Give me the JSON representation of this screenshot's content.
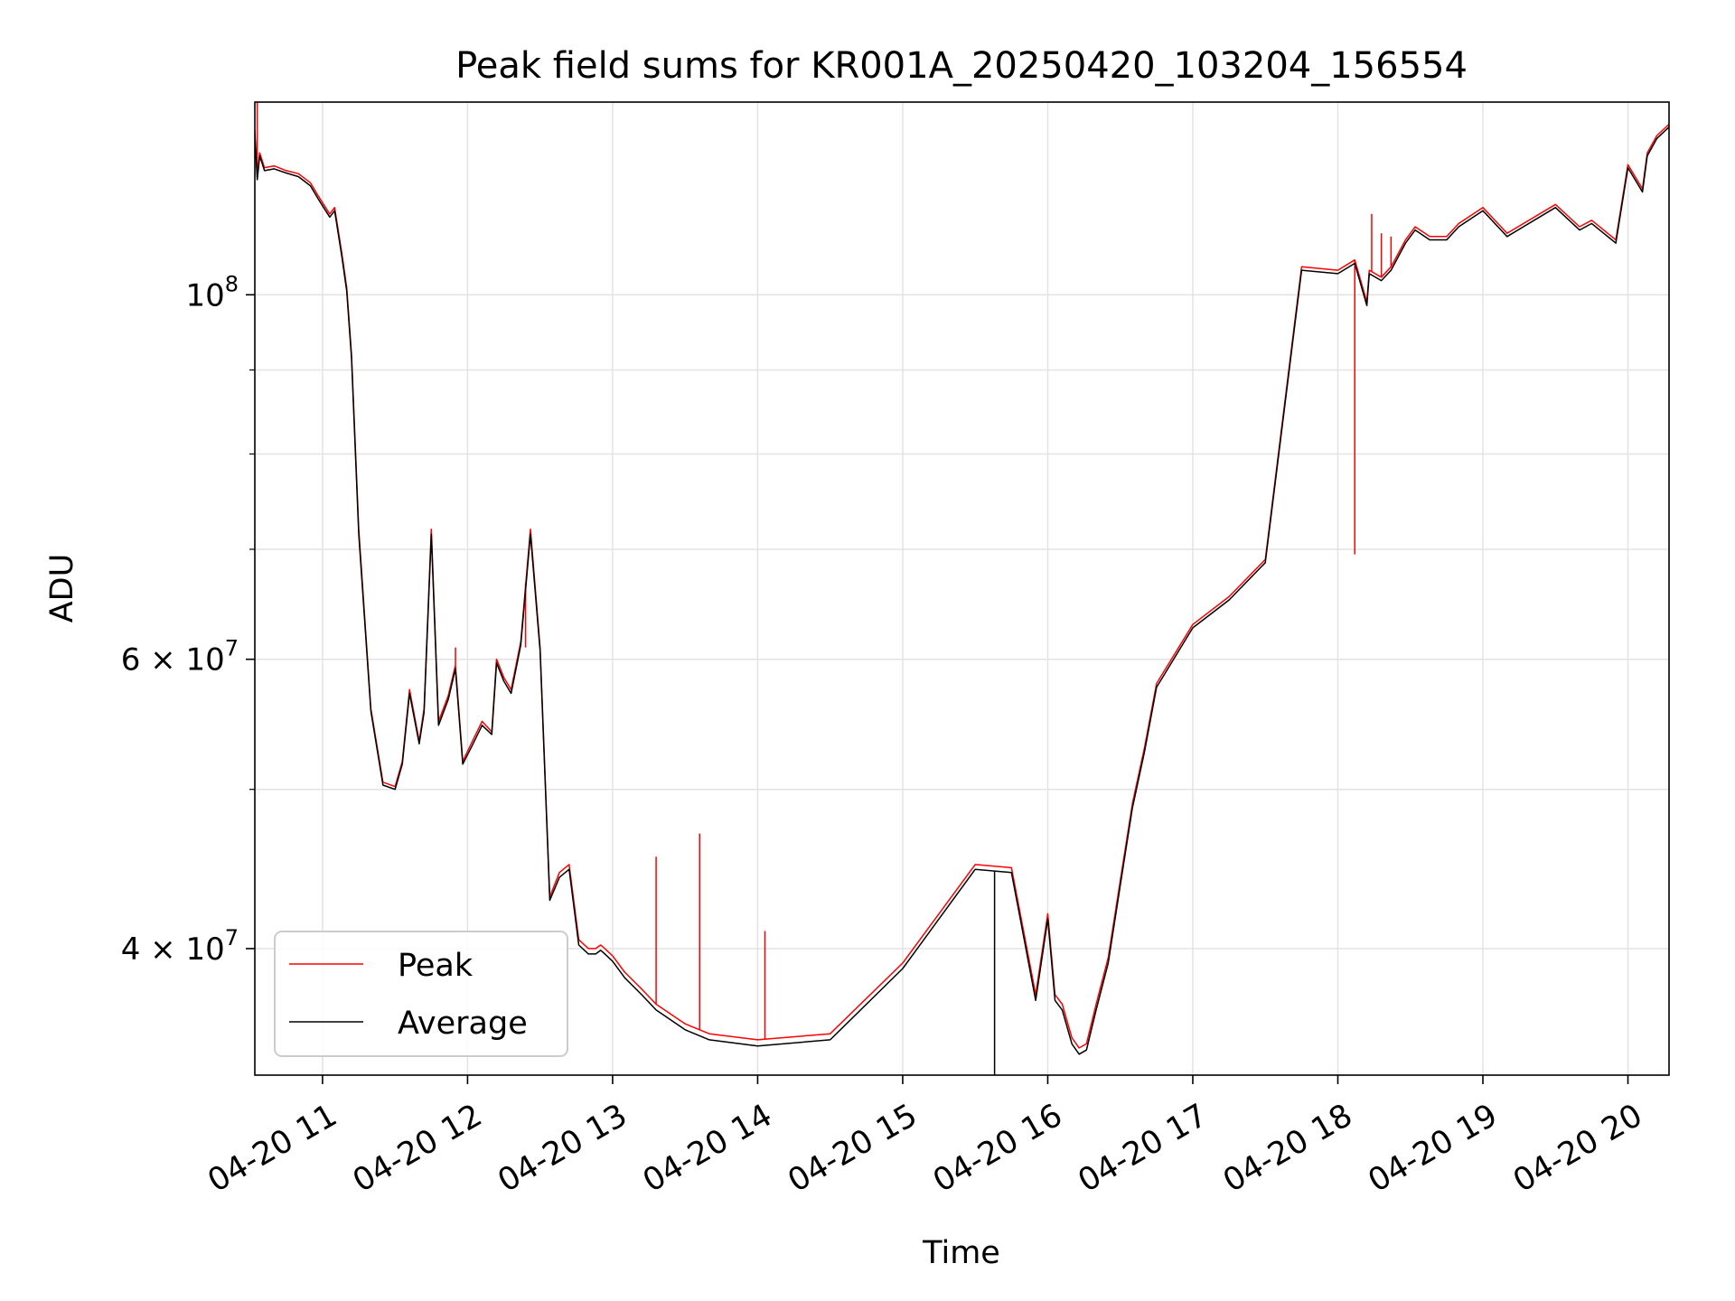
{
  "chart_data": {
    "type": "line",
    "title": "Peak field sums for KR001A_20250420_103204_156554",
    "xlabel": "Time",
    "ylabel": "ADU",
    "yscale": "log",
    "grid": true,
    "legend_position": "lower-left",
    "xlim": [
      "04-20 10:32",
      "04-20 20:17"
    ],
    "ylim": [
      33500000,
      131000000
    ],
    "x_ticks": [
      "04-20 11",
      "04-20 12",
      "04-20 13",
      "04-20 14",
      "04-20 15",
      "04-20 16",
      "04-20 17",
      "04-20 18",
      "04-20 19",
      "04-20 20"
    ],
    "y_ticks": [
      {
        "value": 100000000,
        "mantissa": "10",
        "exp": "8"
      },
      {
        "value": 60000000,
        "mantissa": "6 × 10",
        "exp": "7"
      },
      {
        "value": 40000000,
        "mantissa": "4 × 10",
        "exp": "7"
      }
    ],
    "y_minor_ticks": [
      50000000,
      70000000,
      80000000,
      90000000
    ],
    "series": [
      {
        "name": "Peak",
        "color": "#ff0000",
        "x": [
          "04-20 10:32",
          "04-20 10:33",
          "04-20 10:34",
          "04-20 10:36",
          "04-20 10:40",
          "04-20 10:45",
          "04-20 10:50",
          "04-20 10:55",
          "04-20 10:58",
          "04-20 11:03",
          "04-20 11:05",
          "04-20 11:08",
          "04-20 11:10",
          "04-20 11:12",
          "04-20 11:15",
          "04-20 11:20",
          "04-20 11:25",
          "04-20 11:30",
          "04-20 11:33",
          "04-20 11:36",
          "04-20 11:40",
          "04-20 11:42",
          "04-20 11:45",
          "04-20 11:48",
          "04-20 11:52",
          "04-20 11:55",
          "04-20 11:58",
          "04-20 12:02",
          "04-20 12:06",
          "04-20 12:10",
          "04-20 12:12",
          "04-20 12:15",
          "04-20 12:18",
          "04-20 12:22",
          "04-20 12:26",
          "04-20 12:30",
          "04-20 12:34",
          "04-20 12:38",
          "04-20 12:42",
          "04-20 12:46",
          "04-20 12:50",
          "04-20 12:53",
          "04-20 12:55",
          "04-20 12:56",
          "04-20 13:00",
          "04-20 13:05",
          "04-20 13:12",
          "04-20 13:18",
          "04-20 13:30",
          "04-20 13:40",
          "04-20 14:00",
          "04-20 14:30",
          "04-20 15:00",
          "04-20 15:30",
          "04-20 15:45",
          "04-20 15:50",
          "04-20 15:55",
          "04-20 16:00",
          "04-20 16:03",
          "04-20 16:06",
          "04-20 16:10",
          "04-20 16:13",
          "04-20 16:16",
          "04-20 16:20",
          "04-20 16:25",
          "04-20 16:30",
          "04-20 16:35",
          "04-20 16:40",
          "04-20 16:45",
          "04-20 17:00",
          "04-20 17:15",
          "04-20 17:30",
          "04-20 17:45",
          "04-20 18:00",
          "04-20 18:07",
          "04-20 18:12",
          "04-20 18:13",
          "04-20 18:18",
          "04-20 18:22",
          "04-20 18:28",
          "04-20 18:32",
          "04-20 18:38",
          "04-20 18:45",
          "04-20 18:50",
          "04-20 19:00",
          "04-20 19:10",
          "04-20 19:30",
          "04-20 19:40",
          "04-20 19:45",
          "04-20 19:55",
          "04-20 20:00",
          "04-20 20:06",
          "04-20 20:08",
          "04-20 20:12",
          "04-20 20:17"
        ],
        "values": [
          126000000,
          118000000,
          122000000,
          119500000,
          119800000,
          119000000,
          118500000,
          117000000,
          115000000,
          112000000,
          113000000,
          106000000,
          101000000,
          92000000,
          72000000,
          56000000,
          50500000,
          50200000,
          52000000,
          57500000,
          53500000,
          56000000,
          72000000,
          55000000,
          57000000,
          59500000,
          52000000,
          53500000,
          55000000,
          54200000,
          60000000,
          58500000,
          57500000,
          61500000,
          72000000,
          61000000,
          43000000,
          44500000,
          45000000,
          40500000,
          40000000,
          40000000,
          40200000,
          40100000,
          39600000,
          38700000,
          37800000,
          37000000,
          36000000,
          35500000,
          35200000,
          35500000,
          39200000,
          45000000,
          44800000,
          41000000,
          37500000,
          42000000,
          37500000,
          37000000,
          35300000,
          34800000,
          35000000,
          37000000,
          39500000,
          44000000,
          49000000,
          53000000,
          58000000,
          63000000,
          65500000,
          69000000,
          104000000,
          103500000,
          105000000,
          99000000,
          103500000,
          102500000,
          104000000,
          108000000,
          110000000,
          108500000,
          108500000,
          110500000,
          113000000,
          109000000,
          113500000,
          110000000,
          111000000,
          108000000,
          120000000,
          116000000,
          122000000,
          125000000,
          127000000
        ],
        "spikes": [
          {
            "x": "04-20 10:33",
            "value": 131000000
          },
          {
            "x": "04-20 11:55",
            "value": 61000000
          },
          {
            "x": "04-20 12:24",
            "value": 61000000
          },
          {
            "x": "04-20 13:18",
            "value": 45500000
          },
          {
            "x": "04-20 13:36",
            "value": 47000000
          },
          {
            "x": "04-20 14:03",
            "value": 41000000
          },
          {
            "x": "04-20 18:07",
            "value": 69500000
          },
          {
            "x": "04-20 18:14",
            "value": 112000000
          },
          {
            "x": "04-20 18:18",
            "value": 109000000
          },
          {
            "x": "04-20 18:22",
            "value": 108500000
          }
        ]
      },
      {
        "name": "Average",
        "color": "#000000",
        "x": [
          "04-20 10:32",
          "04-20 10:33",
          "04-20 10:34",
          "04-20 10:36",
          "04-20 10:40",
          "04-20 10:45",
          "04-20 10:50",
          "04-20 10:55",
          "04-20 10:58",
          "04-20 11:03",
          "04-20 11:05",
          "04-20 11:08",
          "04-20 11:10",
          "04-20 11:12",
          "04-20 11:15",
          "04-20 11:20",
          "04-20 11:25",
          "04-20 11:30",
          "04-20 11:33",
          "04-20 11:36",
          "04-20 11:40",
          "04-20 11:42",
          "04-20 11:45",
          "04-20 11:48",
          "04-20 11:52",
          "04-20 11:55",
          "04-20 11:58",
          "04-20 12:02",
          "04-20 12:06",
          "04-20 12:10",
          "04-20 12:12",
          "04-20 12:15",
          "04-20 12:18",
          "04-20 12:22",
          "04-20 12:26",
          "04-20 12:30",
          "04-20 12:34",
          "04-20 12:38",
          "04-20 12:42",
          "04-20 12:46",
          "04-20 12:50",
          "04-20 12:53",
          "04-20 12:55",
          "04-20 12:56",
          "04-20 13:00",
          "04-20 13:05",
          "04-20 13:12",
          "04-20 13:18",
          "04-20 13:30",
          "04-20 13:40",
          "04-20 14:00",
          "04-20 14:30",
          "04-20 15:00",
          "04-20 15:30",
          "04-20 15:45",
          "04-20 15:50",
          "04-20 15:55",
          "04-20 16:00",
          "04-20 16:03",
          "04-20 16:06",
          "04-20 16:10",
          "04-20 16:13",
          "04-20 16:16",
          "04-20 16:20",
          "04-20 16:25",
          "04-20 16:30",
          "04-20 16:35",
          "04-20 16:40",
          "04-20 16:45",
          "04-20 17:00",
          "04-20 17:15",
          "04-20 17:30",
          "04-20 17:45",
          "04-20 18:00",
          "04-20 18:07",
          "04-20 18:12",
          "04-20 18:13",
          "04-20 18:18",
          "04-20 18:22",
          "04-20 18:28",
          "04-20 18:32",
          "04-20 18:38",
          "04-20 18:45",
          "04-20 18:50",
          "04-20 19:00",
          "04-20 19:10",
          "04-20 19:30",
          "04-20 19:40",
          "04-20 19:45",
          "04-20 19:55",
          "04-20 20:00",
          "04-20 20:06",
          "04-20 20:08",
          "04-20 20:12",
          "04-20 20:17"
        ],
        "values": [
          125000000,
          117500000,
          121500000,
          119000000,
          119300000,
          118600000,
          118000000,
          116500000,
          114500000,
          111500000,
          112500000,
          105500000,
          100500000,
          91500000,
          71500000,
          55800000,
          50300000,
          50000000,
          51800000,
          57200000,
          53300000,
          55700000,
          71500000,
          54700000,
          56700000,
          59200000,
          51800000,
          53200000,
          54700000,
          54000000,
          59700000,
          58200000,
          57200000,
          61200000,
          71500000,
          60700000,
          42800000,
          44200000,
          44700000,
          40200000,
          39700000,
          39700000,
          39900000,
          39800000,
          39300000,
          38400000,
          37500000,
          36700000,
          35700000,
          35200000,
          34900000,
          35200000,
          38900000,
          44700000,
          44500000,
          40700000,
          37200000,
          41700000,
          37200000,
          36700000,
          35000000,
          34500000,
          34700000,
          36700000,
          39200000,
          43700000,
          48700000,
          52700000,
          57700000,
          62700000,
          65200000,
          68700000,
          103500000,
          103000000,
          104500000,
          98500000,
          103000000,
          102000000,
          103500000,
          107500000,
          109500000,
          108000000,
          108000000,
          110000000,
          112500000,
          108500000,
          113000000,
          109500000,
          110500000,
          107500000,
          119500000,
          115500000,
          121500000,
          124500000,
          126500000
        ],
        "dips": [
          {
            "x": "04-20 15:38",
            "value": 33500000
          }
        ]
      }
    ]
  }
}
